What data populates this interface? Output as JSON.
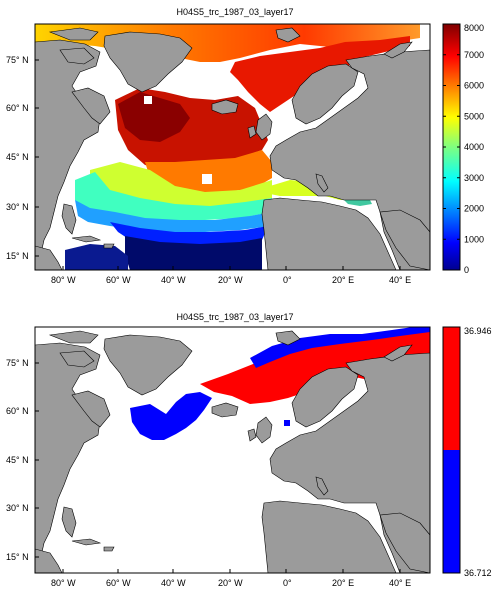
{
  "panels": [
    {
      "title": "H04S5_trc_1987_03_layer17",
      "lat_labels": [
        "15° N",
        "30° N",
        "45° N",
        "60° N",
        "75° N"
      ],
      "lon_labels": [
        "80° W",
        "60° W",
        "40° W",
        "20° W",
        "0°",
        "20° E",
        "40° E"
      ],
      "colorbar": {
        "type": "continuous",
        "colormap": "jet",
        "ticks": [
          "0",
          "1000",
          "2000",
          "3000",
          "4000",
          "5000",
          "6000",
          "7000",
          "8000"
        ],
        "min": 0,
        "max": 8000
      }
    },
    {
      "title": "H04S5_trc_1987_03_layer17",
      "lat_labels": [
        "15° N",
        "30° N",
        "45° N",
        "60° N",
        "75° N"
      ],
      "lon_labels": [
        "80° W",
        "60° W",
        "40° W",
        "20° W",
        "0°",
        "20° E",
        "40° E"
      ],
      "colorbar": {
        "type": "binary",
        "top_value": "36.946",
        "bottom_value": "36.712",
        "top_color": "#ff0000",
        "bottom_color": "#0000ff"
      }
    }
  ],
  "colors": {
    "land": "#9b9b9b",
    "ocean_nodata": "#ffffff",
    "frame": "#000000"
  }
}
